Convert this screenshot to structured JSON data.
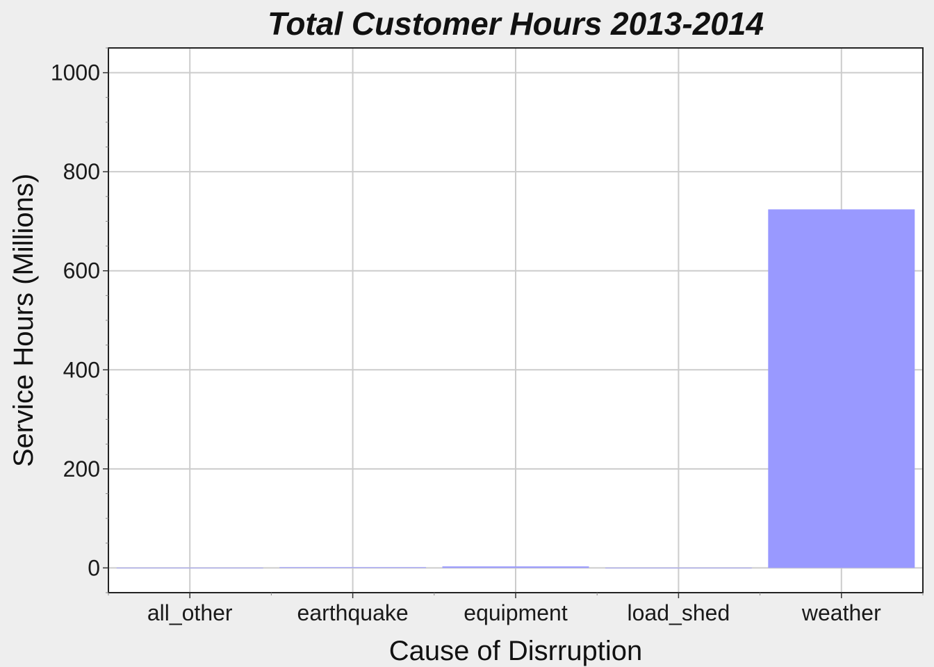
{
  "chart_data": {
    "type": "bar",
    "title": "Total Customer Hours 2013-2014",
    "xlabel": "Cause of Disrruption",
    "ylabel": "Service Hours (Millions)",
    "categories": [
      "all_other",
      "earthquake",
      "equipment",
      "load_shed",
      "weather"
    ],
    "values": [
      0.3,
      1.5,
      3,
      0.2,
      724
    ],
    "ylim": [
      -50,
      1050
    ],
    "yticks": [
      0,
      200,
      400,
      600,
      800,
      1000
    ],
    "ytick_labels": [
      "0",
      "200",
      "400",
      "600",
      "800",
      "1000"
    ],
    "grid": true,
    "legend": "none",
    "bar_color": "#9999ff",
    "panel_background": "#ffffff",
    "page_background": "#eeeeee"
  }
}
